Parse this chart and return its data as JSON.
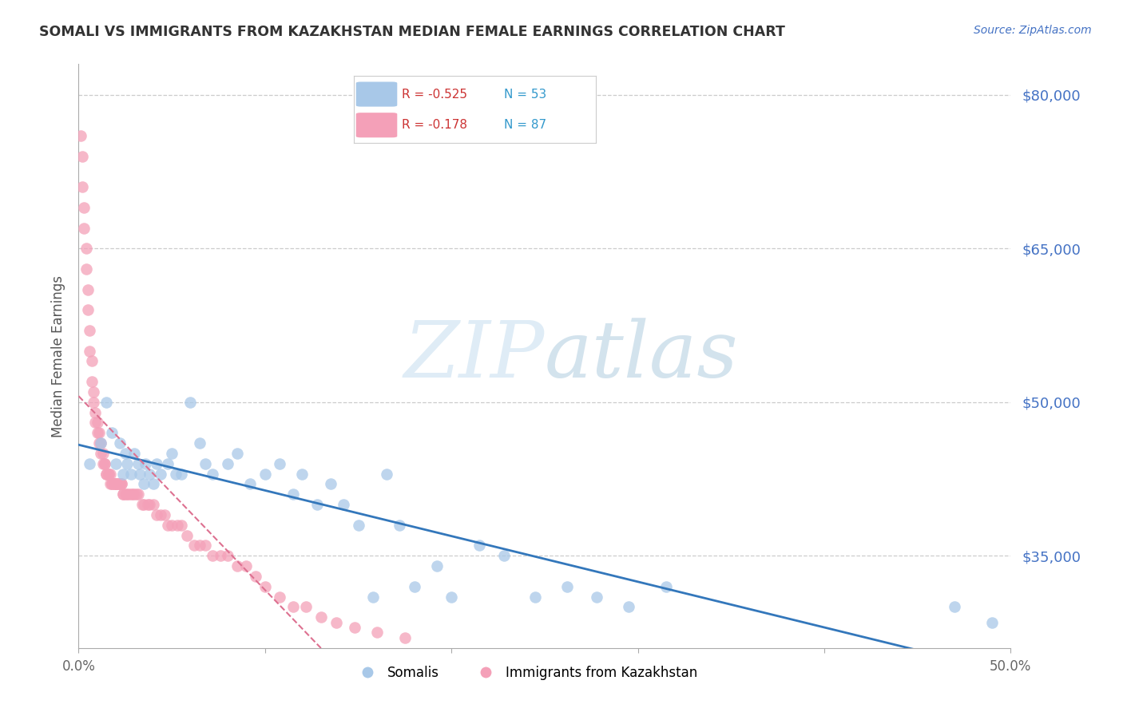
{
  "title": "SOMALI VS IMMIGRANTS FROM KAZAKHSTAN MEDIAN FEMALE EARNINGS CORRELATION CHART",
  "source": "Source: ZipAtlas.com",
  "ylabel": "Median Female Earnings",
  "xlim": [
    0.0,
    0.5
  ],
  "ylim": [
    26000,
    83000
  ],
  "yticks": [
    35000,
    50000,
    65000,
    80000
  ],
  "ytick_labels": [
    "$35,000",
    "$50,000",
    "$65,000",
    "$80,000"
  ],
  "xticks": [
    0.0,
    0.1,
    0.2,
    0.3,
    0.4,
    0.5
  ],
  "xtick_labels": [
    "0.0%",
    "",
    "",
    "",
    "",
    "50.0%"
  ],
  "watermark_zip": "ZIP",
  "watermark_atlas": "atlas",
  "legend_r1": "R = -0.525",
  "legend_n1": "N = 53",
  "legend_r2": "R = -0.178",
  "legend_n2": "N = 87",
  "somali_color": "#a8c8e8",
  "kaz_color": "#f4a0b8",
  "trendline_somali_color": "#3377bb",
  "trendline_kaz_color": "#dd7090",
  "grid_color": "#cccccc",
  "background_color": "#ffffff",
  "somali_x": [
    0.006,
    0.012,
    0.015,
    0.018,
    0.02,
    0.022,
    0.024,
    0.025,
    0.026,
    0.028,
    0.03,
    0.032,
    0.033,
    0.035,
    0.036,
    0.038,
    0.04,
    0.042,
    0.044,
    0.048,
    0.05,
    0.052,
    0.055,
    0.06,
    0.065,
    0.068,
    0.072,
    0.08,
    0.085,
    0.092,
    0.1,
    0.108,
    0.115,
    0.12,
    0.128,
    0.135,
    0.142,
    0.15,
    0.158,
    0.165,
    0.172,
    0.18,
    0.192,
    0.2,
    0.215,
    0.228,
    0.245,
    0.262,
    0.278,
    0.295,
    0.315,
    0.47,
    0.49
  ],
  "somali_y": [
    44000,
    46000,
    50000,
    47000,
    44000,
    46000,
    43000,
    45000,
    44000,
    43000,
    45000,
    44000,
    43000,
    42000,
    44000,
    43000,
    42000,
    44000,
    43000,
    44000,
    45000,
    43000,
    43000,
    50000,
    46000,
    44000,
    43000,
    44000,
    45000,
    42000,
    43000,
    44000,
    41000,
    43000,
    40000,
    42000,
    40000,
    38000,
    31000,
    43000,
    38000,
    32000,
    34000,
    31000,
    36000,
    35000,
    31000,
    32000,
    31000,
    30000,
    32000,
    30000,
    28500
  ],
  "kaz_x": [
    0.001,
    0.002,
    0.002,
    0.003,
    0.003,
    0.004,
    0.004,
    0.005,
    0.005,
    0.006,
    0.006,
    0.007,
    0.007,
    0.008,
    0.008,
    0.009,
    0.009,
    0.01,
    0.01,
    0.011,
    0.011,
    0.012,
    0.012,
    0.013,
    0.013,
    0.014,
    0.014,
    0.015,
    0.015,
    0.016,
    0.016,
    0.017,
    0.017,
    0.018,
    0.018,
    0.019,
    0.019,
    0.02,
    0.02,
    0.021,
    0.021,
    0.022,
    0.022,
    0.022,
    0.023,
    0.023,
    0.024,
    0.024,
    0.025,
    0.026,
    0.027,
    0.028,
    0.029,
    0.03,
    0.031,
    0.032,
    0.034,
    0.035,
    0.037,
    0.038,
    0.04,
    0.042,
    0.044,
    0.046,
    0.048,
    0.05,
    0.053,
    0.055,
    0.058,
    0.062,
    0.065,
    0.068,
    0.072,
    0.076,
    0.08,
    0.085,
    0.09,
    0.095,
    0.1,
    0.108,
    0.115,
    0.122,
    0.13,
    0.138,
    0.148,
    0.16,
    0.175
  ],
  "kaz_y": [
    76000,
    74000,
    71000,
    69000,
    67000,
    65000,
    63000,
    61000,
    59000,
    57000,
    55000,
    54000,
    52000,
    51000,
    50000,
    49000,
    48000,
    48000,
    47000,
    47000,
    46000,
    46000,
    45000,
    45000,
    44000,
    44000,
    44000,
    43000,
    43000,
    43000,
    43000,
    43000,
    42000,
    42000,
    42000,
    42000,
    42000,
    42000,
    42000,
    42000,
    42000,
    42000,
    42000,
    42000,
    42000,
    42000,
    41000,
    41000,
    41000,
    41000,
    41000,
    41000,
    41000,
    41000,
    41000,
    41000,
    40000,
    40000,
    40000,
    40000,
    40000,
    39000,
    39000,
    39000,
    38000,
    38000,
    38000,
    38000,
    37000,
    36000,
    36000,
    36000,
    35000,
    35000,
    35000,
    34000,
    34000,
    33000,
    32000,
    31000,
    30000,
    30000,
    29000,
    28500,
    28000,
    27500,
    27000
  ]
}
